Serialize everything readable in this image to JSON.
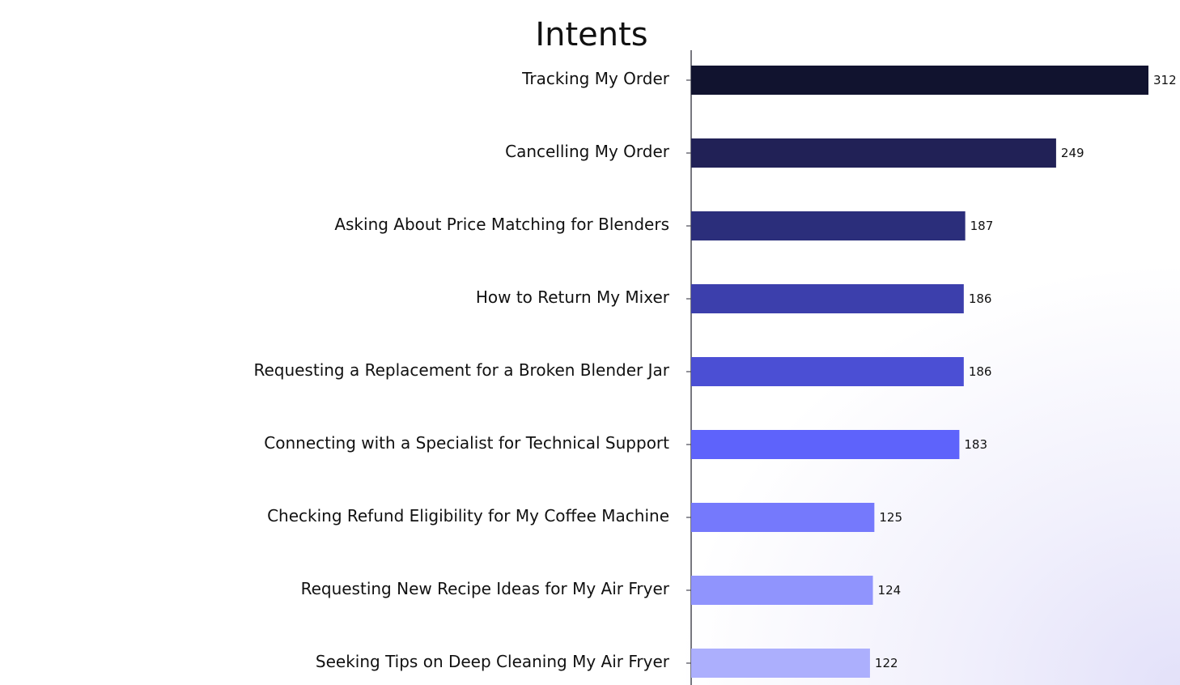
{
  "chart_data": {
    "type": "bar",
    "orientation": "horizontal",
    "title": "Intents",
    "categories": [
      "Tracking My Order",
      "Cancelling My Order",
      "Asking About Price Matching for Blenders",
      "How to Return My Mixer",
      "Requesting a Replacement for a Broken Blender Jar",
      "Connecting with a Specialist for Technical Support",
      "Checking Refund Eligibility for My Coffee Machine",
      "Requesting New Recipe Ideas for My Air Fryer",
      "Seeking Tips on Deep Cleaning My Air Fryer"
    ],
    "values": [
      312,
      249,
      187,
      186,
      186,
      183,
      125,
      124,
      122
    ],
    "value_labels": [
      "312",
      "249",
      "187",
      "186",
      "186",
      "183",
      "125",
      "124",
      "122"
    ],
    "colors": [
      "#11132f",
      "#212156",
      "#2b2e7b",
      "#3c3fac",
      "#4b4fd4",
      "#5e63fb",
      "#7579fc",
      "#9094fd",
      "#acaffd"
    ],
    "xlim": [
      0,
      312
    ],
    "grid": false,
    "legend": "none",
    "show_x_axis": false
  }
}
